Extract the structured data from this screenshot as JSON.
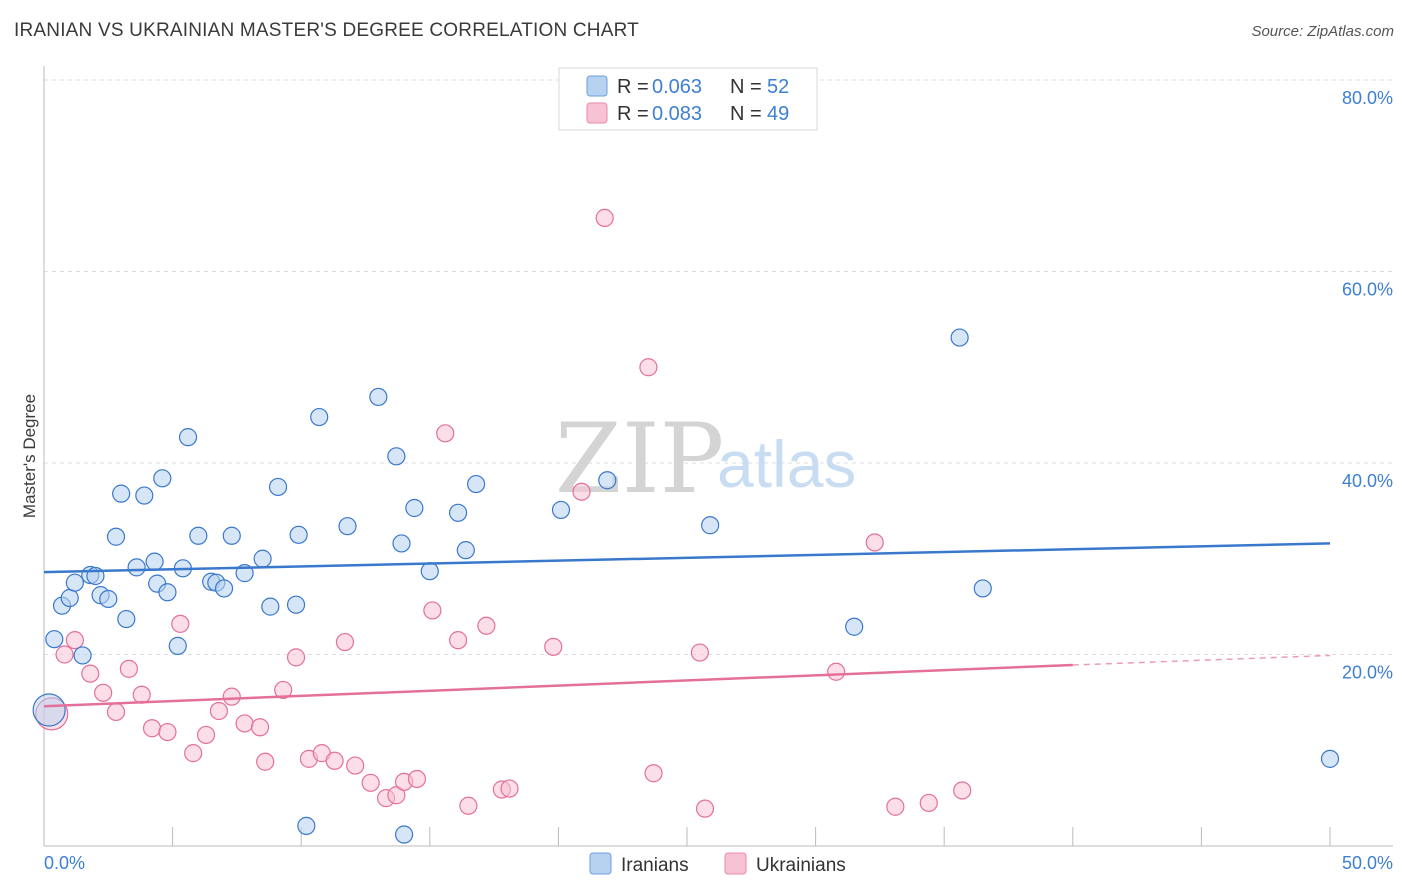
{
  "title": "IRANIAN VS UKRAINIAN MASTER'S DEGREE CORRELATION CHART",
  "source": "Source: ZipAtlas.com",
  "watermark": {
    "zip": "ZIP",
    "atlas": "atlas"
  },
  "colors": {
    "iranian": "#3a78cc",
    "iranian_fill": "#b7d1f1",
    "ukrainian": "#e4709a",
    "ukrainian_fill": "#f7c2d3",
    "tick_blue": "#3d7fd0",
    "grid": "#dddddd"
  },
  "legend": {
    "rows": [
      {
        "series": "Iranians",
        "r_label": "R = ",
        "r_value": "0.063",
        "n_label": "N = ",
        "n_value": "52"
      },
      {
        "series": "Ukrainians",
        "r_label": "R = ",
        "r_value": "0.083",
        "n_label": "N = ",
        "n_value": "49"
      }
    ]
  },
  "chart_data": {
    "type": "scatter",
    "title": "IRANIAN VS UKRAINIAN MASTER'S DEGREE CORRELATION CHART",
    "xlabel": "",
    "ylabel": "Master's Degree",
    "xlim": [
      0,
      50
    ],
    "ylim": [
      0,
      80
    ],
    "x_tick_labels": [
      "0.0%",
      "50.0%"
    ],
    "y_ticks": [
      20,
      40,
      60,
      80
    ],
    "y_tick_labels": [
      "20.0%",
      "40.0%",
      "60.0%",
      "80.0%"
    ],
    "grid": true,
    "legend_position": "top-center",
    "series": [
      {
        "name": "Iranians",
        "r": 0.063,
        "n": 52,
        "trend": {
          "x": [
            0,
            50
          ],
          "y": [
            28.6,
            31.6
          ]
        },
        "points": [
          {
            "x": 0.2,
            "y": 14.2,
            "big": true
          },
          {
            "x": 0.4,
            "y": 21.6
          },
          {
            "x": 0.7,
            "y": 25.1
          },
          {
            "x": 1.0,
            "y": 25.9
          },
          {
            "x": 1.2,
            "y": 27.5
          },
          {
            "x": 1.5,
            "y": 19.9
          },
          {
            "x": 1.8,
            "y": 28.3
          },
          {
            "x": 2.0,
            "y": 28.2
          },
          {
            "x": 2.2,
            "y": 26.2
          },
          {
            "x": 2.5,
            "y": 25.8
          },
          {
            "x": 2.8,
            "y": 32.3
          },
          {
            "x": 3.0,
            "y": 36.8
          },
          {
            "x": 3.2,
            "y": 23.7
          },
          {
            "x": 3.6,
            "y": 29.1
          },
          {
            "x": 3.9,
            "y": 36.6
          },
          {
            "x": 4.3,
            "y": 29.7
          },
          {
            "x": 4.4,
            "y": 27.4
          },
          {
            "x": 4.6,
            "y": 38.4
          },
          {
            "x": 4.8,
            "y": 26.5
          },
          {
            "x": 5.2,
            "y": 20.9
          },
          {
            "x": 5.4,
            "y": 29.0
          },
          {
            "x": 5.6,
            "y": 42.7
          },
          {
            "x": 6.0,
            "y": 32.4
          },
          {
            "x": 6.5,
            "y": 27.6
          },
          {
            "x": 6.7,
            "y": 27.5
          },
          {
            "x": 7.0,
            "y": 26.9
          },
          {
            "x": 7.3,
            "y": 32.4
          },
          {
            "x": 7.8,
            "y": 28.5
          },
          {
            "x": 8.5,
            "y": 30.0
          },
          {
            "x": 8.8,
            "y": 25.0
          },
          {
            "x": 9.1,
            "y": 37.5
          },
          {
            "x": 9.8,
            "y": 25.2
          },
          {
            "x": 9.9,
            "y": 32.5
          },
          {
            "x": 10.2,
            "y": 2.1
          },
          {
            "x": 10.7,
            "y": 44.8
          },
          {
            "x": 11.8,
            "y": 33.4
          },
          {
            "x": 13.0,
            "y": 46.9
          },
          {
            "x": 13.7,
            "y": 40.7
          },
          {
            "x": 13.9,
            "y": 31.6
          },
          {
            "x": 14.0,
            "y": 1.2
          },
          {
            "x": 14.4,
            "y": 35.3
          },
          {
            "x": 15.0,
            "y": 28.7
          },
          {
            "x": 16.1,
            "y": 34.8
          },
          {
            "x": 16.4,
            "y": 30.9
          },
          {
            "x": 16.8,
            "y": 37.8
          },
          {
            "x": 20.1,
            "y": 35.1
          },
          {
            "x": 21.9,
            "y": 38.2
          },
          {
            "x": 25.9,
            "y": 33.5
          },
          {
            "x": 31.5,
            "y": 22.9
          },
          {
            "x": 35.6,
            "y": 53.1
          },
          {
            "x": 36.5,
            "y": 26.9
          },
          {
            "x": 50.0,
            "y": 9.1
          }
        ]
      },
      {
        "name": "Ukrainians",
        "r": 0.083,
        "n": 49,
        "trend": {
          "x": [
            0,
            40
          ],
          "x_dashed_end": 50,
          "y": [
            14.6,
            18.9
          ],
          "y_dashed_end": 19.9
        },
        "points": [
          {
            "x": 0.3,
            "y": 13.8,
            "big": true
          },
          {
            "x": 0.8,
            "y": 20.0
          },
          {
            "x": 1.2,
            "y": 21.5
          },
          {
            "x": 1.8,
            "y": 18.0
          },
          {
            "x": 2.3,
            "y": 16.0
          },
          {
            "x": 2.8,
            "y": 14.0
          },
          {
            "x": 3.3,
            "y": 18.5
          },
          {
            "x": 3.8,
            "y": 15.8
          },
          {
            "x": 4.2,
            "y": 12.3
          },
          {
            "x": 4.8,
            "y": 11.9
          },
          {
            "x": 5.3,
            "y": 23.2
          },
          {
            "x": 5.8,
            "y": 9.7
          },
          {
            "x": 6.3,
            "y": 11.6
          },
          {
            "x": 6.8,
            "y": 14.1
          },
          {
            "x": 7.3,
            "y": 15.6
          },
          {
            "x": 7.8,
            "y": 12.8
          },
          {
            "x": 8.4,
            "y": 12.4
          },
          {
            "x": 8.6,
            "y": 8.8
          },
          {
            "x": 9.3,
            "y": 16.3
          },
          {
            "x": 9.8,
            "y": 19.7
          },
          {
            "x": 10.3,
            "y": 9.1
          },
          {
            "x": 10.8,
            "y": 9.7
          },
          {
            "x": 11.3,
            "y": 8.9
          },
          {
            "x": 11.7,
            "y": 21.3
          },
          {
            "x": 12.1,
            "y": 8.4
          },
          {
            "x": 12.7,
            "y": 6.6
          },
          {
            "x": 13.3,
            "y": 5.0
          },
          {
            "x": 13.7,
            "y": 5.3
          },
          {
            "x": 14.0,
            "y": 6.7
          },
          {
            "x": 14.5,
            "y": 7.0
          },
          {
            "x": 15.1,
            "y": 24.6
          },
          {
            "x": 15.6,
            "y": 43.1
          },
          {
            "x": 16.1,
            "y": 21.5
          },
          {
            "x": 16.5,
            "y": 4.2
          },
          {
            "x": 17.2,
            "y": 23.0
          },
          {
            "x": 17.8,
            "y": 5.9
          },
          {
            "x": 18.1,
            "y": 6.0
          },
          {
            "x": 19.8,
            "y": 20.8
          },
          {
            "x": 20.9,
            "y": 37.0
          },
          {
            "x": 21.8,
            "y": 65.6
          },
          {
            "x": 23.5,
            "y": 50.0
          },
          {
            "x": 23.7,
            "y": 7.6
          },
          {
            "x": 25.5,
            "y": 20.2
          },
          {
            "x": 25.7,
            "y": 3.9
          },
          {
            "x": 30.8,
            "y": 18.2
          },
          {
            "x": 32.3,
            "y": 31.7
          },
          {
            "x": 33.1,
            "y": 4.1
          },
          {
            "x": 34.4,
            "y": 4.5
          },
          {
            "x": 35.7,
            "y": 5.8
          }
        ]
      }
    ]
  }
}
